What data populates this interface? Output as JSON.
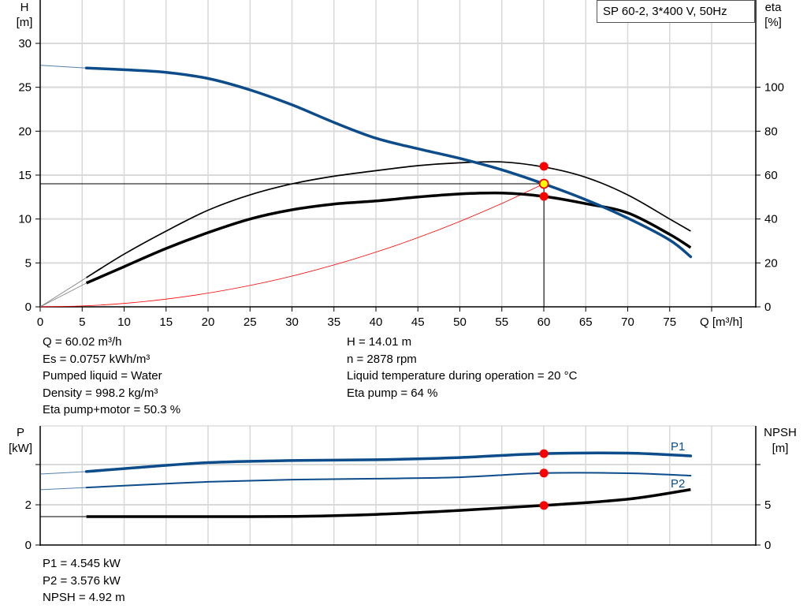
{
  "legend_box": "SP 60-2, 3*400 V, 50Hz",
  "colors": {
    "head": "#0c4c8a",
    "efficiency": "#000000",
    "system": "#ff0000",
    "operating_point": "#ff0000",
    "duty_point_fill": "#ffff00",
    "grid": "#d9d9d9"
  },
  "chart_data": [
    {
      "type": "line",
      "title": "",
      "xlabel": "Q [m³/h]",
      "ylabel": "H [m]",
      "ylabel_unit_lines": [
        "H",
        "[m]"
      ],
      "y2label_lines": [
        "eta",
        "[%]"
      ],
      "xlim": [
        0,
        85
      ],
      "ylim": [
        0,
        35
      ],
      "y2lim": [
        0,
        140
      ],
      "grid": true,
      "x_ticks": [
        "0",
        "5",
        "10",
        "15",
        "20",
        "25",
        "30",
        "35",
        "40",
        "45",
        "50",
        "55",
        "60",
        "65",
        "70",
        "75"
      ],
      "y_ticks": [
        "0",
        "5",
        "10",
        "15",
        "20",
        "25",
        "30"
      ],
      "y2_ticks": [
        "0",
        "20",
        "40",
        "60",
        "80",
        "100"
      ],
      "series": [
        {
          "key": "head",
          "axis": "left",
          "x": [
            0,
            5.5,
            10,
            15,
            20,
            25,
            30,
            35,
            40,
            45,
            50,
            55,
            60,
            65,
            70,
            75,
            77.5
          ],
          "y": [
            27.5,
            27.2,
            27.0,
            26.7,
            26.0,
            24.7,
            23.0,
            21.0,
            19.2,
            18.0,
            16.9,
            15.6,
            14.0,
            12.2,
            10.1,
            7.6,
            5.7
          ]
        },
        {
          "key": "eta_pump",
          "axis": "right",
          "x": [
            0,
            5.5,
            10,
            15,
            20,
            25,
            30,
            35,
            40,
            45,
            50,
            55,
            60,
            65,
            70,
            75,
            77.5
          ],
          "y": [
            0,
            13.3,
            24,
            34.5,
            44,
            51,
            56,
            59.5,
            62,
            64.3,
            65.6,
            66,
            63.7,
            59,
            51,
            40,
            34.5
          ]
        },
        {
          "key": "eta_pump_motor",
          "axis": "right",
          "x": [
            0,
            5.5,
            10,
            15,
            20,
            25,
            30,
            35,
            40,
            45,
            50,
            55,
            60,
            65,
            70,
            75,
            77.5
          ],
          "y": [
            0,
            10.8,
            18.3,
            26.6,
            33.8,
            40,
            44.2,
            46.8,
            48.2,
            50,
            51.4,
            51.8,
            50.3,
            47,
            42.8,
            33,
            27
          ]
        },
        {
          "key": "system_curve",
          "axis": "left",
          "x": [
            0,
            5,
            10,
            15,
            20,
            25,
            30,
            35,
            40,
            45,
            50,
            55,
            60
          ],
          "y": [
            0,
            0.1,
            0.39,
            0.88,
            1.56,
            2.43,
            3.5,
            4.77,
            6.23,
            7.88,
            9.73,
            11.77,
            14.01
          ]
        }
      ],
      "operating_point": {
        "q": 60.02,
        "h": 14.01,
        "eta_pump": 64,
        "eta_pump_motor": 50.3
      }
    },
    {
      "type": "line",
      "title": "",
      "ylabel_unit_lines": [
        "P",
        "[kW]"
      ],
      "y2label_lines": [
        "NPSH",
        "[m]"
      ],
      "xlim": [
        0,
        85
      ],
      "ylim": [
        0,
        6
      ],
      "y2lim": [
        0,
        15
      ],
      "grid": true,
      "y_ticks": [
        "0",
        "2"
      ],
      "y2_ticks": [
        "0",
        "5"
      ],
      "series": [
        {
          "key": "P1",
          "name": "P1",
          "axis": "left",
          "x": [
            0,
            5.5,
            10,
            20,
            30,
            40,
            50,
            60,
            70,
            77.5
          ],
          "y": [
            3.53,
            3.65,
            3.8,
            4.1,
            4.2,
            4.24,
            4.35,
            4.545,
            4.57,
            4.43
          ]
        },
        {
          "key": "P2",
          "name": "P2",
          "axis": "left",
          "x": [
            0,
            5.5,
            10,
            20,
            30,
            40,
            50,
            60,
            70,
            77.5
          ],
          "y": [
            2.75,
            2.86,
            2.95,
            3.14,
            3.25,
            3.3,
            3.37,
            3.576,
            3.57,
            3.45
          ]
        },
        {
          "key": "NPSH",
          "axis": "right",
          "x": [
            0,
            5.5,
            10,
            20,
            30,
            40,
            50,
            60,
            70,
            77.5
          ],
          "y": [
            3.53,
            3.53,
            3.53,
            3.53,
            3.55,
            3.8,
            4.3,
            4.92,
            5.7,
            6.9
          ]
        }
      ],
      "operating_point": {
        "q": 60.02,
        "p1": 4.545,
        "p2": 3.576,
        "npsh": 4.92
      }
    }
  ],
  "results": {
    "left": [
      "Q = 60.02 m³/h",
      "Es = 0.0757 kWh/m³",
      "Pumped liquid = Water",
      "Density = 998.2 kg/m³",
      "Eta pump+motor = 50.3 %"
    ],
    "right": [
      "H = 14.01 m",
      "n = 2878 rpm",
      "Liquid temperature during operation = 20 °C",
      "Eta pump = 64 %"
    ],
    "power": [
      "P1 = 4.545 kW",
      "P2 = 3.576 kW",
      "NPSH = 4.92 m"
    ]
  }
}
